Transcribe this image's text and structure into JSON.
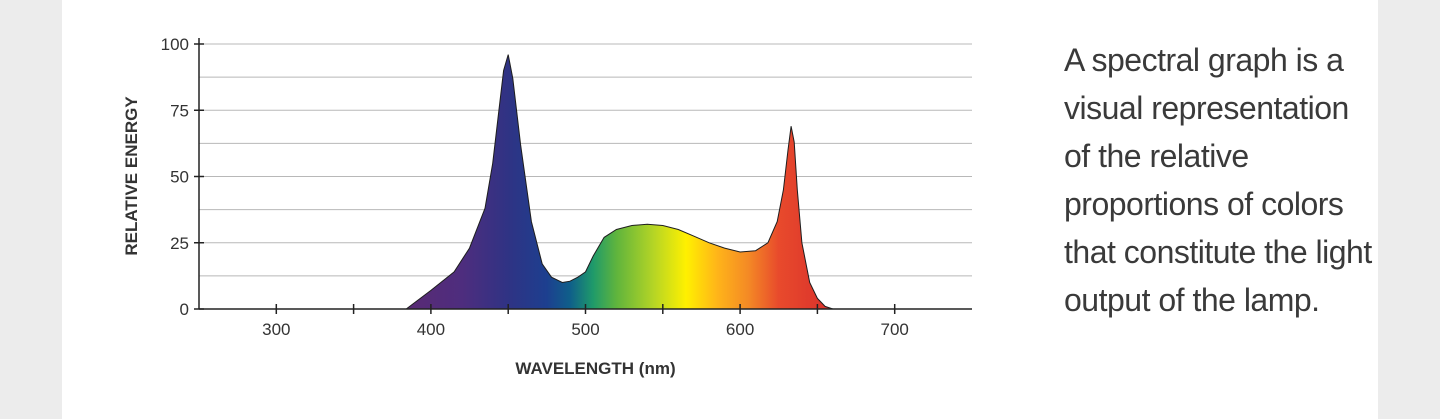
{
  "caption": {
    "lines": [
      "A spectral graph is a",
      "visual representation",
      "of the relative",
      "proportions of colors",
      "that constitute the light",
      "output of the lamp."
    ]
  },
  "chart_data": {
    "type": "area",
    "title": "",
    "xlabel": "WAVELENGTH (nm)",
    "ylabel": "RELATIVE ENERGY",
    "xlim": [
      250,
      750
    ],
    "ylim": [
      0,
      100
    ],
    "x_ticks": [
      300,
      400,
      500,
      600,
      700
    ],
    "y_ticks": [
      0,
      25,
      50,
      75,
      100
    ],
    "grid": true,
    "series": [
      {
        "x": [
          384,
          400,
          415,
          425,
          435,
          440,
          444,
          447,
          450,
          453,
          458,
          465,
          472,
          478,
          485,
          490,
          495,
          500,
          505,
          512,
          520,
          530,
          540,
          550,
          560,
          570,
          580,
          590,
          600,
          610,
          618,
          624,
          628,
          631,
          633,
          635,
          637,
          640,
          645,
          650,
          655,
          660
        ],
        "y": [
          0,
          7,
          14,
          23,
          38,
          55,
          75,
          90,
          96,
          87,
          62,
          33,
          17,
          12,
          10,
          10.5,
          12,
          14,
          20,
          27,
          30,
          31.5,
          32,
          31.5,
          30,
          27.5,
          25,
          23,
          21.5,
          22,
          25,
          33,
          45,
          60,
          69,
          63,
          45,
          25,
          10,
          4,
          1,
          0
        ]
      }
    ]
  }
}
